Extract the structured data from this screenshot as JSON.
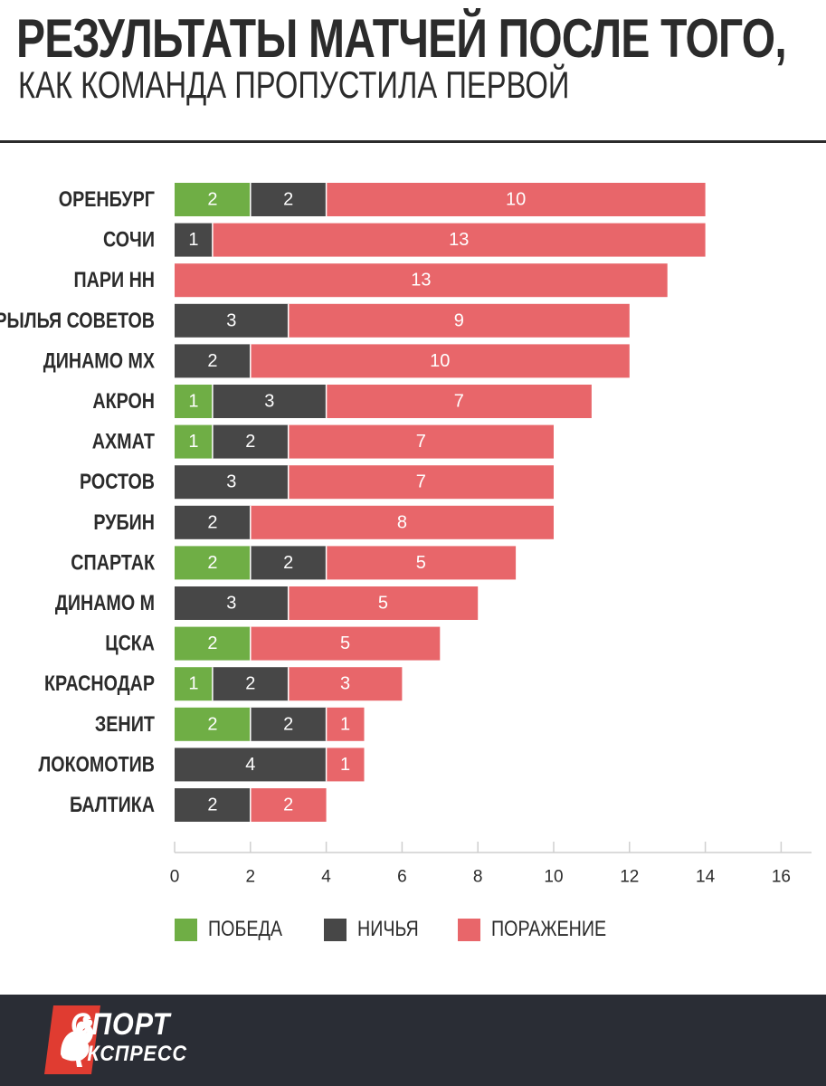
{
  "header": {
    "title": "РЕЗУЛЬТАТЫ МАТЧЕЙ ПОСЛЕ ТОГО,",
    "subtitle": "КАК КОМАНДА ПРОПУСТИЛА ПЕРВОЙ"
  },
  "colors": {
    "win": "#6fae45",
    "draw": "#474747",
    "loss": "#e8666a",
    "text": "#2b2b2b",
    "footer": "#2a2d35",
    "logo_red": "#e03c31"
  },
  "chart_data": {
    "type": "bar",
    "orientation": "horizontal",
    "stacked": true,
    "categories": [
      "ОРЕНБУРГ",
      "СОЧИ",
      "ПАРИ НН",
      "КРЫЛЬЯ СОВЕТОВ",
      "ДИНАМО МХ",
      "АКРОН",
      "АХМАТ",
      "РОСТОВ",
      "РУБИН",
      "СПАРТАК",
      "ДИНАМО М",
      "ЦСКА",
      "КРАСНОДАР",
      "ЗЕНИТ",
      "ЛОКОМОТИВ",
      "БАЛТИКА"
    ],
    "series": [
      {
        "name": "ПОБЕДА",
        "values": [
          2,
          0,
          0,
          0,
          0,
          1,
          1,
          0,
          0,
          2,
          0,
          2,
          1,
          2,
          0,
          0
        ]
      },
      {
        "name": "НИЧЬЯ",
        "values": [
          2,
          1,
          0,
          3,
          2,
          3,
          2,
          3,
          2,
          2,
          3,
          0,
          2,
          2,
          4,
          2
        ]
      },
      {
        "name": "ПОРАЖЕНИЕ",
        "values": [
          10,
          13,
          13,
          9,
          10,
          7,
          7,
          7,
          8,
          5,
          5,
          5,
          3,
          1,
          1,
          2
        ]
      }
    ],
    "xlim": [
      0,
      16
    ],
    "xticks": [
      "0",
      "2",
      "4",
      "6",
      "8",
      "10",
      "12",
      "14",
      "16"
    ],
    "legend_position": "bottom-left",
    "grid": false
  },
  "footer": {
    "logo_line1": "СПОРТ",
    "logo_line2": "ЭКСПРЕСС"
  }
}
